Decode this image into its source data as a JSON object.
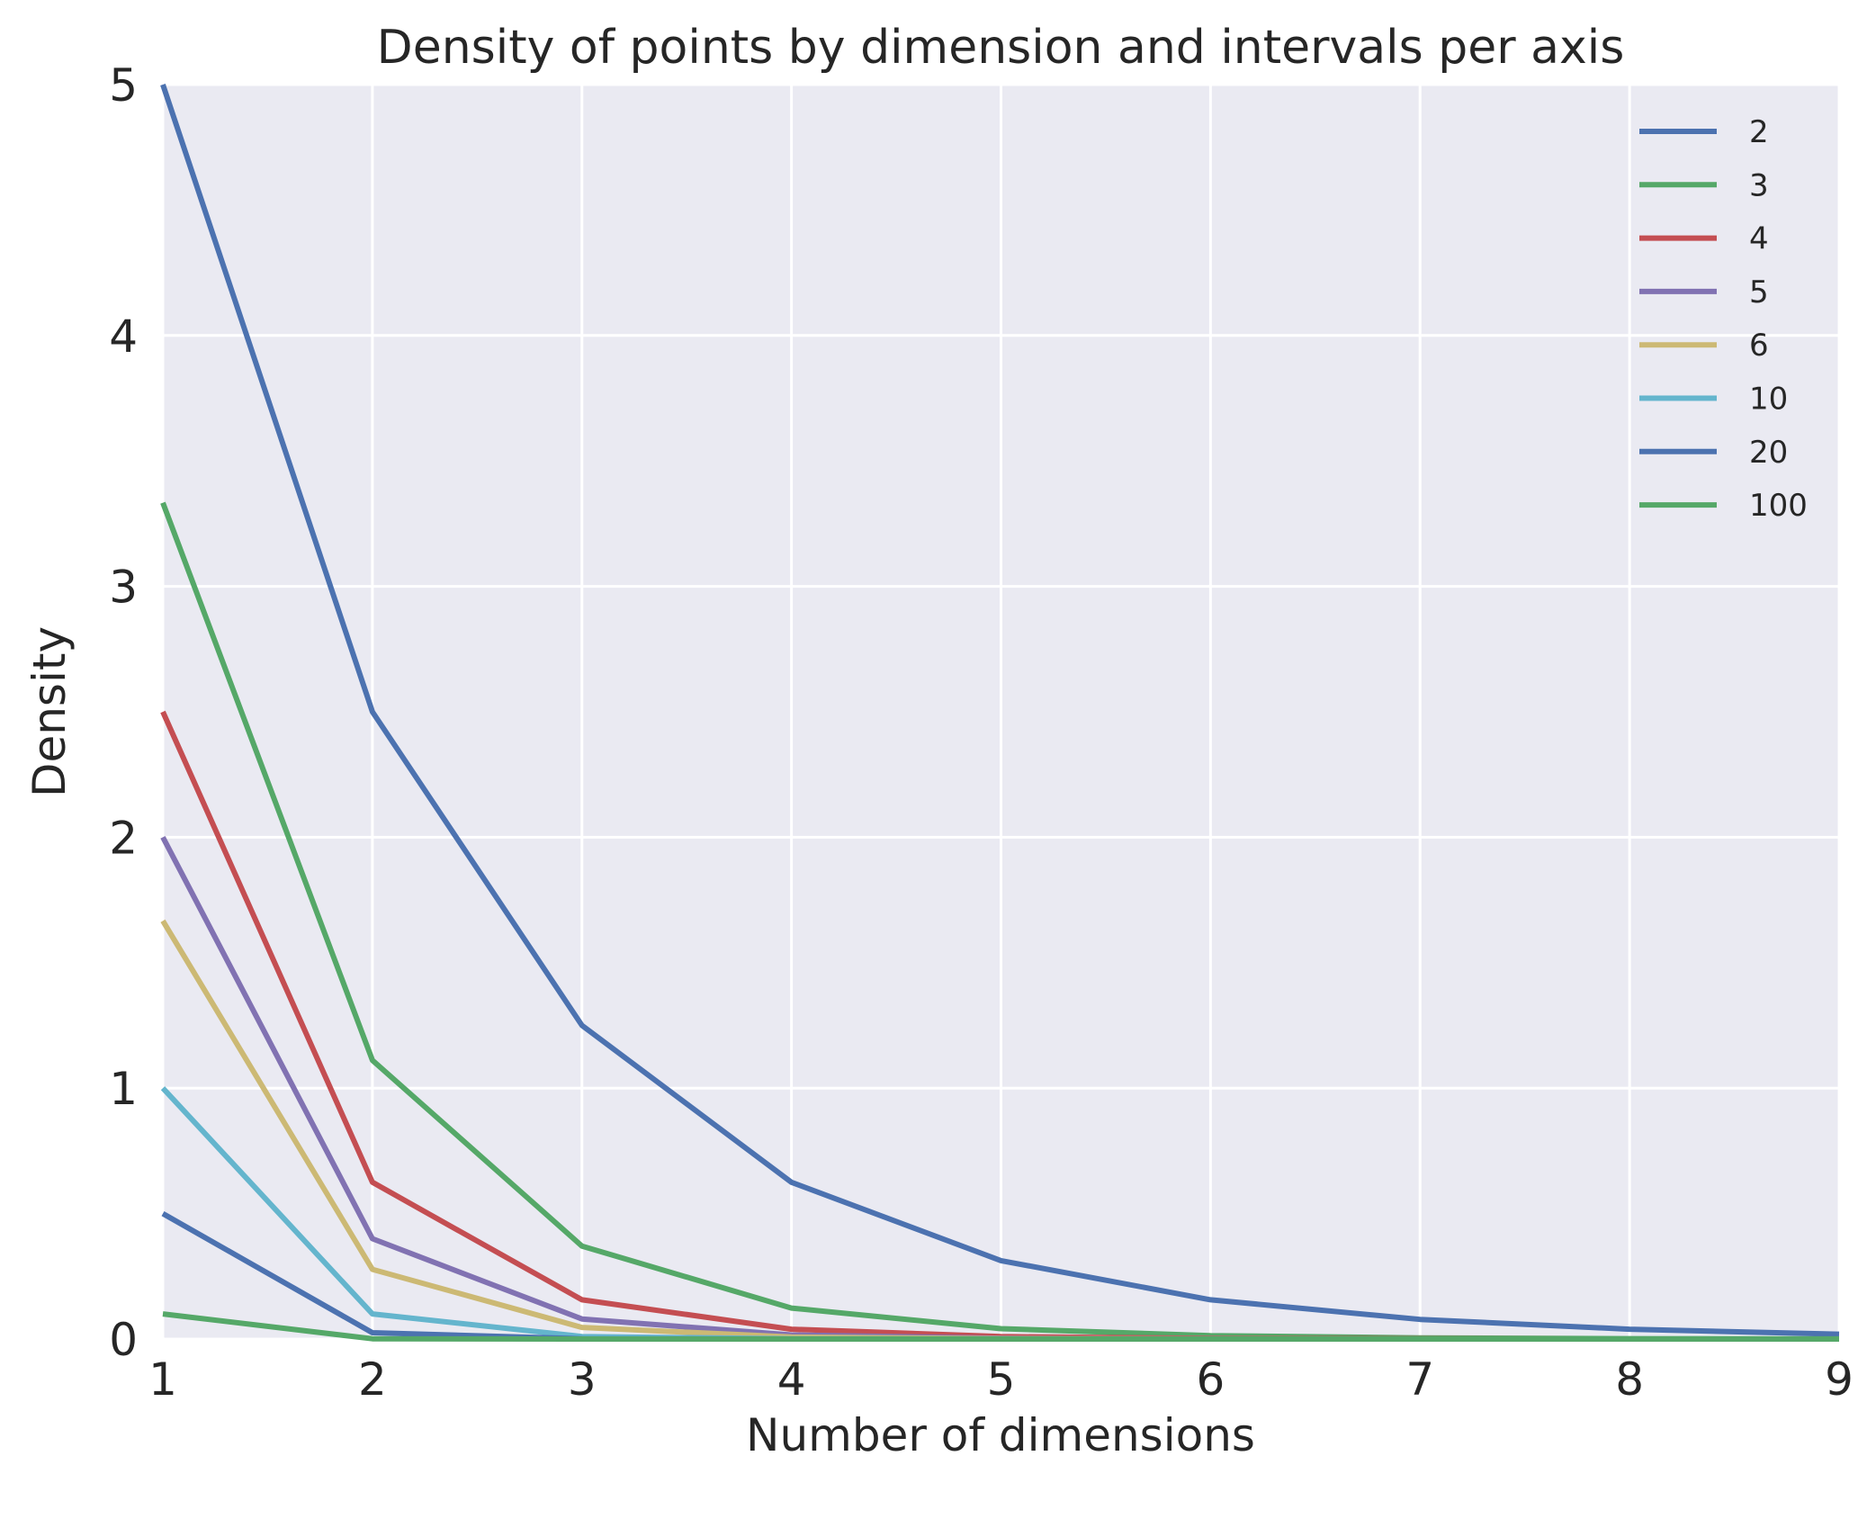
{
  "chart_data": {
    "type": "line",
    "title": "Density of points by dimension and intervals per axis",
    "xlabel": "Number of dimensions",
    "ylabel": "Density",
    "x": [
      1,
      2,
      3,
      4,
      5,
      6,
      7,
      8,
      9
    ],
    "xlim": [
      1,
      9
    ],
    "ylim": [
      0,
      5
    ],
    "xticks": [
      "1",
      "2",
      "3",
      "4",
      "5",
      "6",
      "7",
      "8",
      "9"
    ],
    "yticks": [
      "0",
      "1",
      "2",
      "3",
      "4",
      "5"
    ],
    "grid": true,
    "legend_position": "top-right",
    "background_color": "#eaeaf2",
    "series": [
      {
        "name": "2",
        "color": "#4c72b0",
        "values": [
          5.0,
          2.5,
          1.25,
          0.625,
          0.3125,
          0.15625,
          0.078125,
          0.039063,
          0.019531
        ]
      },
      {
        "name": "3",
        "color": "#55a868",
        "values": [
          3.333333,
          1.111111,
          0.37037,
          0.123457,
          0.041152,
          0.013717,
          0.004572,
          0.001524,
          0.000508
        ]
      },
      {
        "name": "4",
        "color": "#c44e52",
        "values": [
          2.5,
          0.625,
          0.15625,
          0.039063,
          0.009766,
          0.002441,
          0.00061,
          0.000153,
          3.8e-05
        ]
      },
      {
        "name": "5",
        "color": "#8172b2",
        "values": [
          2.0,
          0.4,
          0.08,
          0.016,
          0.0032,
          0.00064,
          0.000128,
          2.6e-05,
          5e-06
        ]
      },
      {
        "name": "6",
        "color": "#ccb974",
        "values": [
          1.666667,
          0.277778,
          0.046296,
          0.007716,
          0.001286,
          0.000214,
          3.6e-05,
          6e-06,
          1e-06
        ]
      },
      {
        "name": "10",
        "color": "#64b5cd",
        "values": [
          1.0,
          0.1,
          0.01,
          0.001,
          0.0001,
          1e-05,
          1e-06,
          0.0,
          0.0
        ]
      },
      {
        "name": "20",
        "color": "#4c72b0",
        "values": [
          0.5,
          0.025,
          0.00125,
          6.25e-05,
          3e-06,
          0.0,
          0.0,
          0.0,
          0.0
        ]
      },
      {
        "name": "100",
        "color": "#55a868",
        "values": [
          0.1,
          0.001,
          1e-05,
          0.0,
          0.0,
          0.0,
          0.0,
          0.0,
          0.0
        ]
      }
    ]
  }
}
